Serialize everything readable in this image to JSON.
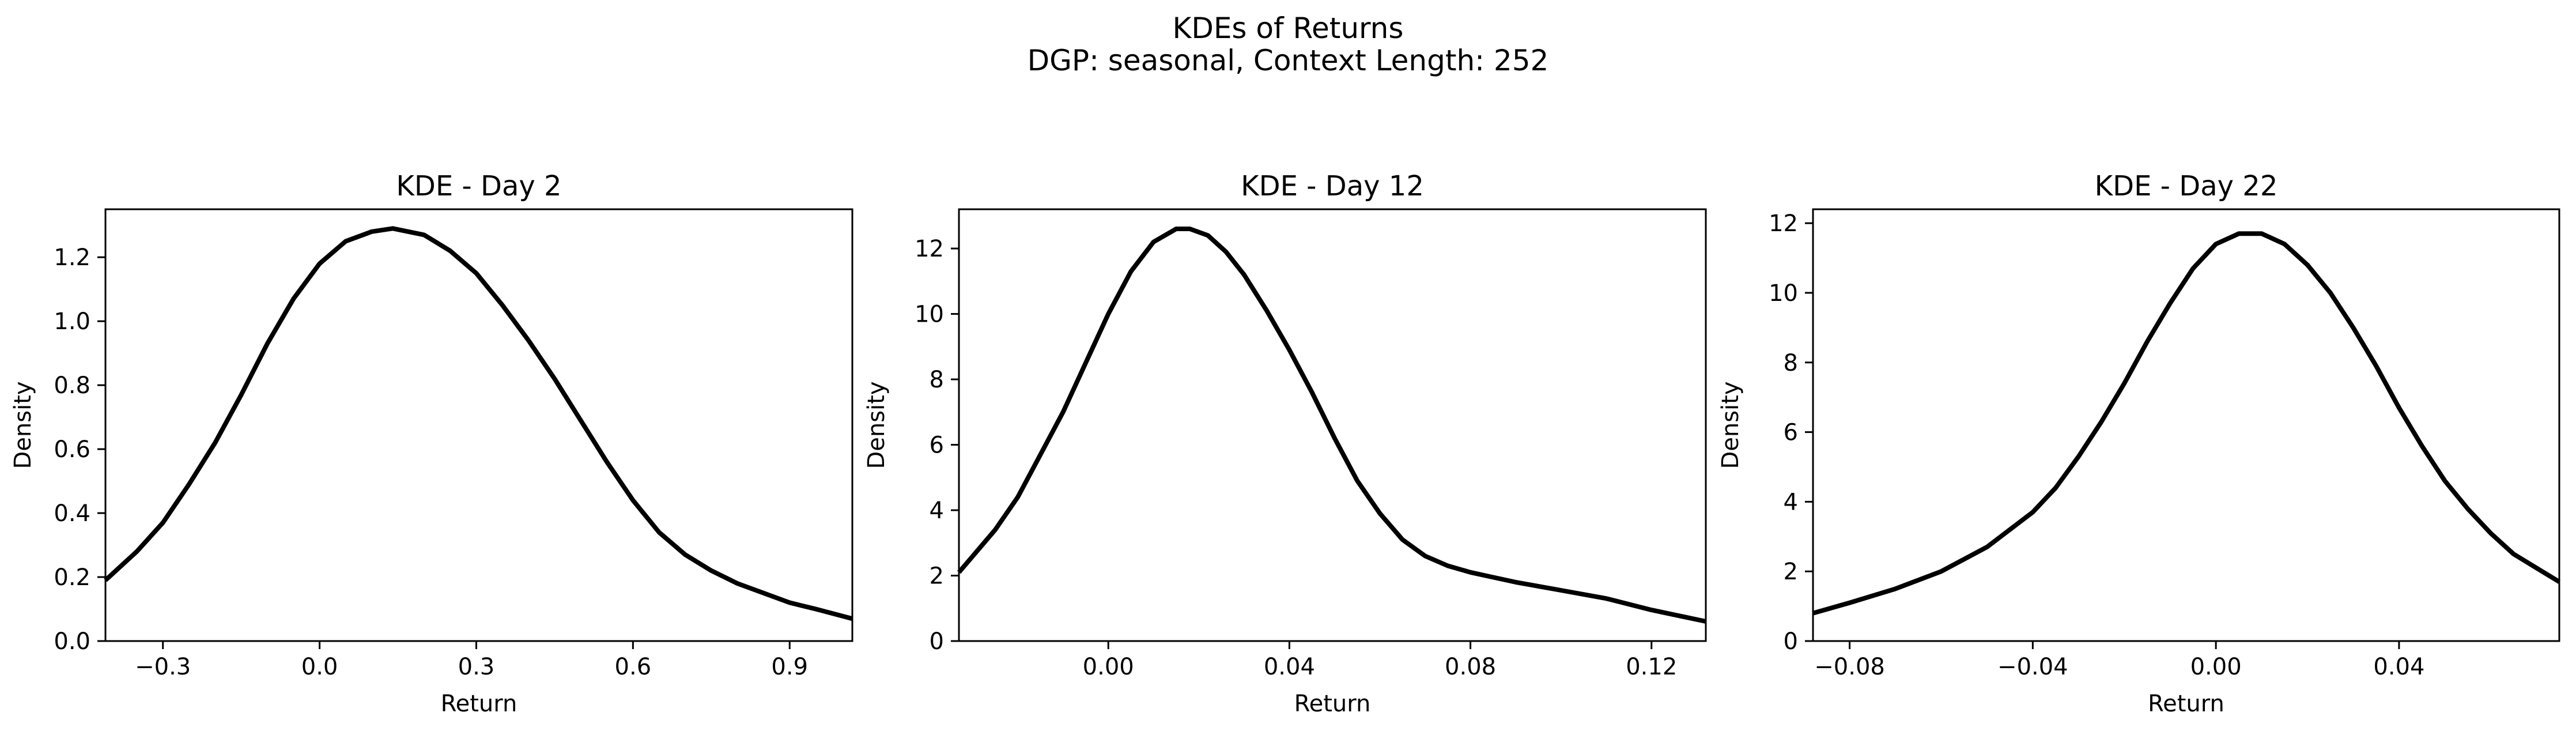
{
  "figure": {
    "title_line1": "KDEs of Returns",
    "title_line2": "DGP: seasonal, Context Length: 252"
  },
  "chart_data": [
    {
      "type": "line",
      "title": "KDE - Day 2",
      "xlabel": "Return",
      "ylabel": "Density",
      "xlim": [
        -0.41,
        1.02
      ],
      "ylim": [
        0,
        1.35
      ],
      "xticks": [
        -0.3,
        0.0,
        0.3,
        0.6,
        0.9
      ],
      "xtick_labels": [
        "−0.3",
        "0.0",
        "0.3",
        "0.6",
        "0.9"
      ],
      "yticks": [
        0.0,
        0.2,
        0.4,
        0.6,
        0.8,
        1.0,
        1.2
      ],
      "ytick_labels": [
        "0.0",
        "0.2",
        "0.4",
        "0.6",
        "0.8",
        "1.0",
        "1.2"
      ],
      "grid": false,
      "line_color": "#000000",
      "series": [
        {
          "x": [
            -0.41,
            -0.35,
            -0.3,
            -0.25,
            -0.2,
            -0.15,
            -0.1,
            -0.05,
            0.0,
            0.05,
            0.1,
            0.14,
            0.2,
            0.25,
            0.3,
            0.35,
            0.4,
            0.45,
            0.5,
            0.55,
            0.6,
            0.65,
            0.7,
            0.75,
            0.8,
            0.85,
            0.9,
            0.95,
            1.02
          ],
          "y": [
            0.19,
            0.28,
            0.37,
            0.49,
            0.62,
            0.77,
            0.93,
            1.07,
            1.18,
            1.25,
            1.28,
            1.29,
            1.27,
            1.22,
            1.15,
            1.05,
            0.94,
            0.82,
            0.69,
            0.56,
            0.44,
            0.34,
            0.27,
            0.22,
            0.18,
            0.15,
            0.12,
            0.1,
            0.07
          ]
        }
      ]
    },
    {
      "type": "line",
      "title": "KDE - Day 12",
      "xlabel": "Return",
      "ylabel": "Density",
      "xlim": [
        -0.033,
        0.132
      ],
      "ylim": [
        0,
        13.2
      ],
      "xticks": [
        0.0,
        0.04,
        0.08,
        0.12
      ],
      "xtick_labels": [
        "0.00",
        "0.04",
        "0.08",
        "0.12"
      ],
      "yticks": [
        0,
        2,
        4,
        6,
        8,
        10,
        12
      ],
      "ytick_labels": [
        "0",
        "2",
        "4",
        "6",
        "8",
        "10",
        "12"
      ],
      "grid": false,
      "line_color": "#000000",
      "series": [
        {
          "x": [
            -0.033,
            -0.025,
            -0.02,
            -0.015,
            -0.01,
            -0.005,
            0.0,
            0.005,
            0.01,
            0.015,
            0.018,
            0.022,
            0.026,
            0.03,
            0.035,
            0.04,
            0.045,
            0.05,
            0.055,
            0.06,
            0.065,
            0.07,
            0.075,
            0.08,
            0.085,
            0.09,
            0.1,
            0.11,
            0.12,
            0.132
          ],
          "y": [
            2.1,
            3.4,
            4.4,
            5.7,
            7.0,
            8.5,
            10.0,
            11.3,
            12.2,
            12.6,
            12.6,
            12.4,
            11.9,
            11.2,
            10.1,
            8.9,
            7.6,
            6.2,
            4.9,
            3.9,
            3.1,
            2.6,
            2.3,
            2.1,
            1.95,
            1.8,
            1.55,
            1.3,
            0.95,
            0.6
          ]
        }
      ]
    },
    {
      "type": "line",
      "title": "KDE - Day 22",
      "xlabel": "Return",
      "ylabel": "Density",
      "xlim": [
        -0.088,
        0.075
      ],
      "ylim": [
        0,
        12.4
      ],
      "xticks": [
        -0.08,
        -0.04,
        0.0,
        0.04
      ],
      "xtick_labels": [
        "−0.08",
        "−0.04",
        "0.00",
        "0.04"
      ],
      "yticks": [
        0,
        2,
        4,
        6,
        8,
        10,
        12
      ],
      "ytick_labels": [
        "0",
        "2",
        "4",
        "6",
        "8",
        "10",
        "12"
      ],
      "grid": false,
      "line_color": "#000000",
      "series": [
        {
          "x": [
            -0.088,
            -0.08,
            -0.07,
            -0.06,
            -0.05,
            -0.04,
            -0.035,
            -0.03,
            -0.025,
            -0.02,
            -0.015,
            -0.01,
            -0.005,
            0.0,
            0.005,
            0.01,
            0.015,
            0.02,
            0.025,
            0.03,
            0.035,
            0.04,
            0.045,
            0.05,
            0.055,
            0.06,
            0.065,
            0.07,
            0.075
          ],
          "y": [
            0.8,
            1.1,
            1.5,
            2.0,
            2.7,
            3.7,
            4.4,
            5.3,
            6.3,
            7.4,
            8.6,
            9.7,
            10.7,
            11.4,
            11.7,
            11.7,
            11.4,
            10.8,
            10.0,
            9.0,
            7.9,
            6.7,
            5.6,
            4.6,
            3.8,
            3.1,
            2.5,
            2.1,
            1.7
          ]
        }
      ]
    }
  ]
}
